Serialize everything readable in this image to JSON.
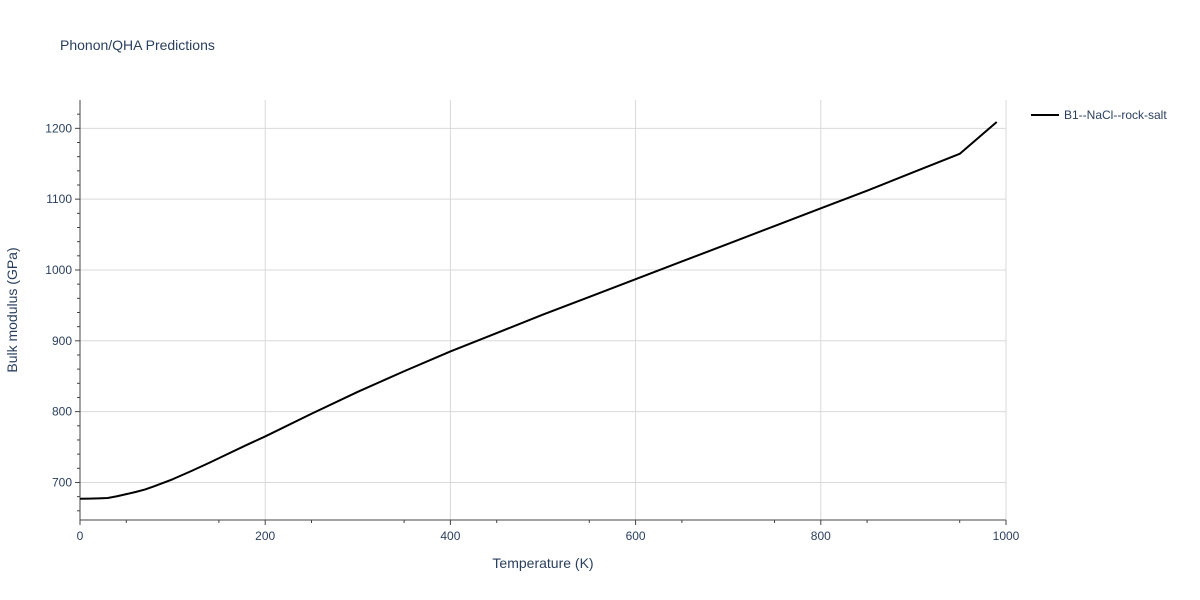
{
  "chart_data": {
    "type": "line",
    "title": "Phonon/QHA Predictions",
    "xlabel": "Temperature (K)",
    "ylabel": "Bulk modulus (GPa)",
    "xlim": [
      0,
      1000
    ],
    "ylim": [
      647,
      1240
    ],
    "xticks": [
      0,
      200,
      400,
      600,
      800,
      1000
    ],
    "yticks": [
      700,
      800,
      900,
      1000,
      1100,
      1200
    ],
    "grid": true,
    "legend_position": "top-right",
    "series": [
      {
        "name": "B1--NaCl--rock-salt",
        "color": "#000000",
        "x": [
          0,
          10,
          20,
          30,
          40,
          50,
          60,
          70,
          80,
          90,
          100,
          120,
          140,
          160,
          180,
          200,
          250,
          300,
          350,
          400,
          450,
          500,
          550,
          600,
          650,
          700,
          750,
          800,
          850,
          900,
          950,
          990
        ],
        "y": [
          677,
          677.2,
          677.5,
          678,
          680.5,
          683.5,
          686.5,
          690,
          694.5,
          699.5,
          704.5,
          716,
          728,
          740.5,
          753,
          765,
          797,
          828,
          857,
          885,
          911,
          937,
          962,
          987,
          1012,
          1037,
          1062,
          1087,
          1112,
          1138,
          1164,
          1209
        ]
      }
    ]
  }
}
